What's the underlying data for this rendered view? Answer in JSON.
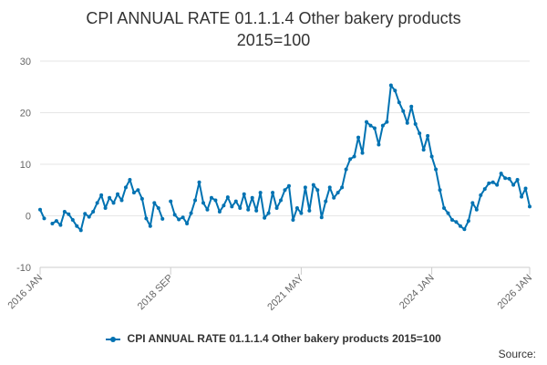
{
  "chart_data": {
    "type": "line",
    "title": [
      "CPI ANNUAL RATE 01.1.1.4 Other bakery products",
      "2015=100"
    ],
    "xlabel": "",
    "ylabel": "",
    "ylim": [
      -10,
      30
    ],
    "yticks": [
      -10,
      0,
      10,
      20,
      30
    ],
    "x_tick_labels": [
      {
        "label": "2016 JAN",
        "index": 0
      },
      {
        "label": "2018 SEP",
        "index": 32
      },
      {
        "label": "2021 MAY",
        "index": 64
      },
      {
        "label": "2024 JAN",
        "index": 96
      },
      {
        "label": "2026 JAN",
        "index": 120
      }
    ],
    "legend_position": "bottom-center",
    "series": [
      {
        "name": "CPI ANNUAL RATE 01.1.1.4 Other bakery products 2015=100",
        "color": "#0072b2",
        "values": [
          1.2,
          -0.5,
          null,
          -1.5,
          -1.0,
          -1.8,
          0.8,
          0.3,
          -0.8,
          -2.0,
          -2.8,
          0.4,
          -0.2,
          0.8,
          2.5,
          4.0,
          1.5,
          3.5,
          2.5,
          4.2,
          3.0,
          5.5,
          7.0,
          4.5,
          5.0,
          3.3,
          -0.5,
          -2.0,
          2.5,
          1.5,
          -0.6,
          null,
          2.8,
          0.2,
          -0.7,
          -0.3,
          -1.5,
          0.5,
          3.0,
          6.5,
          2.5,
          1.2,
          3.5,
          3.0,
          0.8,
          2.0,
          3.6,
          1.8,
          2.8,
          1.5,
          4.2,
          1.2,
          3.5,
          1.0,
          4.5,
          -0.4,
          0.5,
          4.5,
          1.5,
          3.0,
          5.0,
          5.8,
          -0.8,
          1.5,
          0.5,
          5.5,
          1.0,
          6.0,
          5.0,
          -0.3,
          2.8,
          5.5,
          3.5,
          4.5,
          5.5,
          9.0,
          11.0,
          11.5,
          15.2,
          12.2,
          18.2,
          17.5,
          17.0,
          13.8,
          17.5,
          18.2,
          25.3,
          24.3,
          22.0,
          20.3,
          18.0,
          21.2,
          17.8,
          16.0,
          12.8,
          15.5,
          11.5,
          9.0,
          5.0,
          1.5,
          0.5,
          -0.8,
          -1.2,
          -2.0,
          -2.6,
          -1.0,
          2.5,
          1.2,
          4.0,
          5.2,
          6.3,
          6.5,
          6.0,
          8.2,
          7.3,
          7.2,
          6.0,
          7.0,
          3.7,
          5.3,
          1.8
        ]
      }
    ]
  },
  "legend": {
    "label": "CPI ANNUAL RATE 01.1.1.4 Other bakery products 2015=100"
  },
  "footer": {
    "source_label": "Source:"
  }
}
